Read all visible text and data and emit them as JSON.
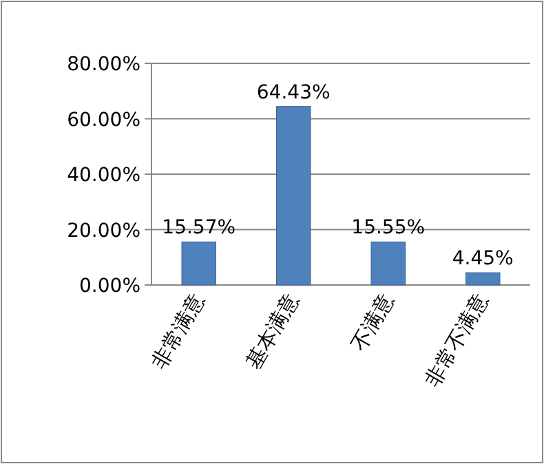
{
  "chart_data": {
    "type": "bar",
    "categories": [
      "非常满意",
      "基本满意",
      "不满意",
      "非常不满意"
    ],
    "values": [
      15.57,
      64.43,
      15.55,
      4.45
    ],
    "color": "#4f81bd",
    "value_labels": [
      "15.57%",
      "64.43%",
      "15.55%",
      "4.45%"
    ],
    "ylim": [
      0,
      80
    ],
    "yticks": [
      {
        "value": 0,
        "label": "0.00%"
      },
      {
        "value": 20,
        "label": "20.00%"
      },
      {
        "value": 40,
        "label": "40.00%"
      },
      {
        "value": 60,
        "label": "60.00%"
      },
      {
        "value": 80,
        "label": "80.00%"
      }
    ],
    "grid": "y"
  }
}
